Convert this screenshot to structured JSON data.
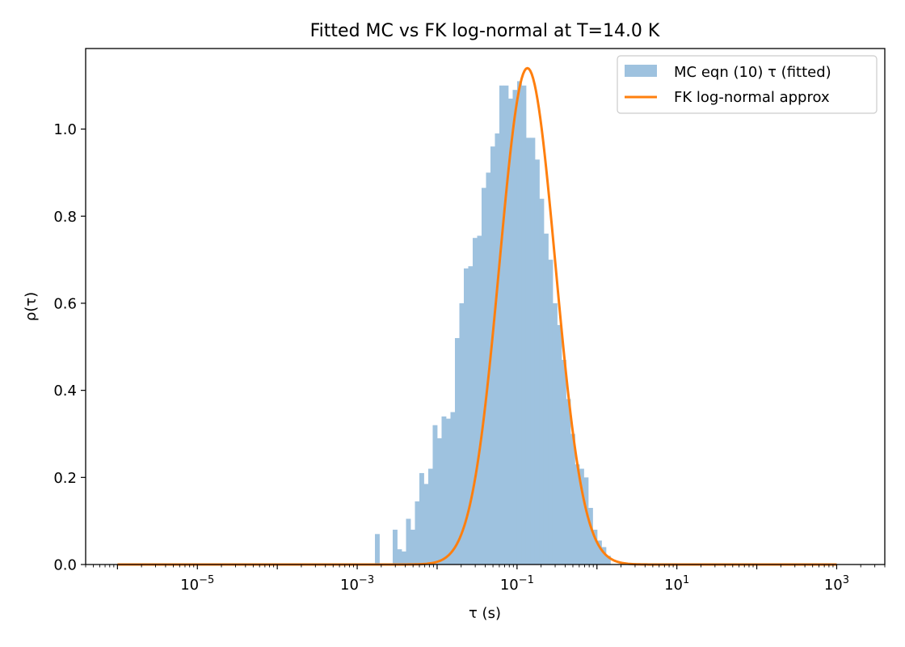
{
  "chart_data": {
    "type": "bar",
    "title": "Fitted MC vs FK log-normal at T=14.0 K",
    "xlabel": "τ (s)",
    "ylabel": "ρ(τ)",
    "xscale": "log",
    "xlim": [
      4e-07,
      4000
    ],
    "ylim": [
      0,
      1.185
    ],
    "x_ticks": [
      {
        "value": 1e-05,
        "base": "10",
        "exp": "−5"
      },
      {
        "value": 0.001,
        "base": "10",
        "exp": "−3"
      },
      {
        "value": 0.1,
        "base": "10",
        "exp": "−1"
      },
      {
        "value": 10,
        "base": "10",
        "exp": "1"
      },
      {
        "value": 1000,
        "base": "10",
        "exp": "3"
      }
    ],
    "y_ticks": [
      {
        "value": 0.0,
        "label": "0.0"
      },
      {
        "value": 0.2,
        "label": "0.2"
      },
      {
        "value": 0.4,
        "label": "0.4"
      },
      {
        "value": 0.6,
        "label": "0.6"
      },
      {
        "value": 0.8,
        "label": "0.8"
      },
      {
        "value": 1.0,
        "label": "1.0"
      }
    ],
    "legend": {
      "position": "upper-right",
      "entries": [
        {
          "label": "MC eqn (10) τ (fitted)",
          "kind": "patch",
          "color": "#9ec2df"
        },
        {
          "label": "FK log-normal approx",
          "kind": "line",
          "color": "#ff7f0e"
        }
      ]
    },
    "histogram": {
      "name": "MC eqn (10) τ (fitted)",
      "color": "#9ec2df",
      "log10_bin_start": -2.778,
      "log10_bin_width": 0.0556,
      "values": [
        0.07,
        0.0,
        0.0,
        0.0,
        0.08,
        0.035,
        0.03,
        0.105,
        0.08,
        0.145,
        0.21,
        0.185,
        0.22,
        0.32,
        0.29,
        0.34,
        0.335,
        0.35,
        0.52,
        0.6,
        0.68,
        0.685,
        0.75,
        0.755,
        0.865,
        0.9,
        0.96,
        0.99,
        1.1,
        1.1,
        1.07,
        1.09,
        1.11,
        1.1,
        0.98,
        0.98,
        0.93,
        0.84,
        0.76,
        0.7,
        0.6,
        0.55,
        0.47,
        0.38,
        0.3,
        0.23,
        0.22,
        0.2,
        0.13,
        0.08,
        0.055,
        0.04,
        0.02
      ]
    },
    "curve": {
      "name": "FK log-normal approx",
      "color": "#ff7f0e",
      "type": "log-normal",
      "peak": 1.14,
      "log10_center": -0.87,
      "log10_sigma": 0.3495,
      "log10_range": [
        -6.0,
        3.0
      ]
    }
  }
}
